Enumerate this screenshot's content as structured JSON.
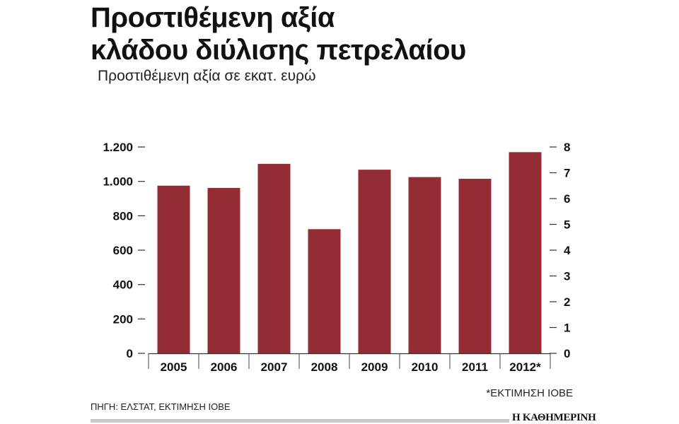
{
  "chart_data": {
    "type": "bar",
    "title": [
      "Προστιθέμενη αξία",
      "κλάδου διύλισης πετρελαίου"
    ],
    "subtitle": "Προστιθέμενη αξία σε εκατ. ευρώ",
    "categories": [
      "2005",
      "2006",
      "2007",
      "2008",
      "2009",
      "2010",
      "2011",
      "2012*"
    ],
    "values": [
      975,
      962,
      1102,
      722,
      1068,
      1025,
      1015,
      1170
    ],
    "ylim": [
      0,
      1200
    ],
    "y_ticks": [
      {
        "value": 0,
        "label": "0"
      },
      {
        "value": 200,
        "label": "200"
      },
      {
        "value": 400,
        "label": "400"
      },
      {
        "value": 600,
        "label": "600"
      },
      {
        "value": 800,
        "label": "800"
      },
      {
        "value": 1000,
        "label": "1.000"
      },
      {
        "value": 1200,
        "label": "1.200"
      }
    ],
    "y2lim": [
      0,
      8
    ],
    "y2_ticks": [
      "0",
      "1",
      "2",
      "3",
      "4",
      "5",
      "6",
      "7",
      "8"
    ],
    "grid": false,
    "bar_color": "#942d33"
  },
  "footnote": "*ΕΚΤΙΜΗΣΗ ΙΟΒΕ",
  "source": "ΠΗΓΗ: ΕΛΣΤΑΤ, ΕΚΤΙΜΗΣΗ ΙΟΒΕ",
  "brand": "Η ΚΑΘΗΜΕΡΙΝΗ"
}
